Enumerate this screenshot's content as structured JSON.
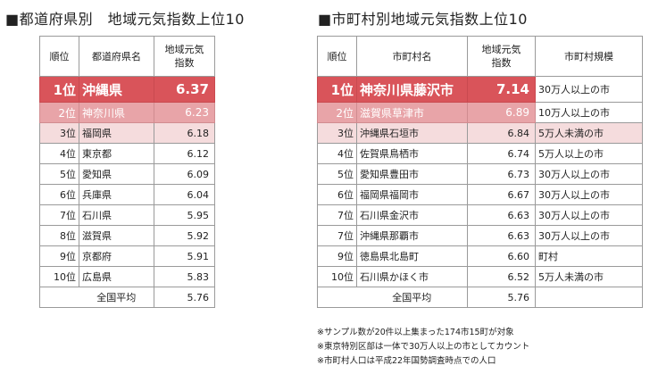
{
  "left_title": "■都道府県別　地域元気指数上位10",
  "right_title": "■市町村別地域元気指数上位10",
  "pref_table": {
    "headers": {
      "rank": "順位",
      "name": "都道府県名",
      "score_line1": "地域元気",
      "score_line2": "指数"
    },
    "rows": [
      {
        "rank": "1位",
        "name": "沖縄県",
        "score": "6.37"
      },
      {
        "rank": "2位",
        "name": "神奈川県",
        "score": "6.23"
      },
      {
        "rank": "3位",
        "name": "福岡県",
        "score": "6.18"
      },
      {
        "rank": "4位",
        "name": "東京都",
        "score": "6.12"
      },
      {
        "rank": "5位",
        "name": "愛知県",
        "score": "6.09"
      },
      {
        "rank": "6位",
        "name": "兵庫県",
        "score": "6.04"
      },
      {
        "rank": "7位",
        "name": "石川県",
        "score": "5.95"
      },
      {
        "rank": "8位",
        "name": "滋賀県",
        "score": "5.92"
      },
      {
        "rank": "9位",
        "name": "京都府",
        "score": "5.91"
      },
      {
        "rank": "10位",
        "name": "広島県",
        "score": "5.83"
      }
    ],
    "average": {
      "label": "全国平均",
      "score": "5.76"
    }
  },
  "city_table": {
    "headers": {
      "rank": "順位",
      "name": "市町村名",
      "score_line1": "地域元気",
      "score_line2": "指数",
      "scale": "市町村規模"
    },
    "rows": [
      {
        "rank": "1位",
        "name": "神奈川県藤沢市",
        "score": "7.14",
        "scale": "30万人以上の市"
      },
      {
        "rank": "2位",
        "name": "滋賀県草津市",
        "score": "6.89",
        "scale": "10万人以上の市"
      },
      {
        "rank": "3位",
        "name": "沖縄県石垣市",
        "score": "6.84",
        "scale": "5万人未満の市"
      },
      {
        "rank": "4位",
        "name": "佐賀県鳥栖市",
        "score": "6.74",
        "scale": "5万人以上の市"
      },
      {
        "rank": "5位",
        "name": "愛知県豊田市",
        "score": "6.73",
        "scale": "30万人以上の市"
      },
      {
        "rank": "6位",
        "name": "福岡県福岡市",
        "score": "6.67",
        "scale": "30万人以上の市"
      },
      {
        "rank": "7位",
        "name": "石川県金沢市",
        "score": "6.63",
        "scale": "30万人以上の市"
      },
      {
        "rank": "7位",
        "name": "沖縄県那覇市",
        "score": "6.63",
        "scale": "30万人以上の市"
      },
      {
        "rank": "9位",
        "name": "徳島県北島町",
        "score": "6.60",
        "scale": "町村"
      },
      {
        "rank": "10位",
        "name": "石川県かほく市",
        "score": "6.52",
        "scale": "5万人未満の市"
      }
    ],
    "average": {
      "label": "全国平均",
      "score": "5.76"
    }
  },
  "notes": [
    "※サンプル数が20件以上集まった174市15町が対象",
    "※東京特別区部は一体で30万人以上の市としてカウント",
    "※市町村人口は平成22年国勢調査時点での人口"
  ],
  "chart_data": [
    {
      "type": "table",
      "title": "■都道府県別　地域元気指数上位10",
      "columns": [
        "順位",
        "都道府県名",
        "地域元気指数"
      ],
      "categories": [
        "沖縄県",
        "神奈川県",
        "福岡県",
        "東京都",
        "愛知県",
        "兵庫県",
        "石川県",
        "滋賀県",
        "京都府",
        "広島県"
      ],
      "values": [
        6.37,
        6.23,
        6.18,
        6.12,
        6.09,
        6.04,
        5.95,
        5.92,
        5.91,
        5.83
      ],
      "average": 5.76,
      "highlight_colors": [
        "#d9545a",
        "#e8a4a8",
        "#f5dcdd"
      ]
    },
    {
      "type": "table",
      "title": "■市町村別地域元気指数上位10",
      "columns": [
        "順位",
        "市町村名",
        "地域元気指数",
        "市町村規模"
      ],
      "categories": [
        "神奈川県藤沢市",
        "滋賀県草津市",
        "沖縄県石垣市",
        "佐賀県鳥栖市",
        "愛知県豊田市",
        "福岡県福岡市",
        "石川県金沢市",
        "沖縄県那覇市",
        "徳島県北島町",
        "石川県かほく市"
      ],
      "values": [
        7.14,
        6.89,
        6.84,
        6.74,
        6.73,
        6.67,
        6.63,
        6.63,
        6.6,
        6.52
      ],
      "average": 5.76,
      "highlight_colors": [
        "#d9545a",
        "#e8a4a8",
        "#f5dcdd"
      ]
    }
  ]
}
